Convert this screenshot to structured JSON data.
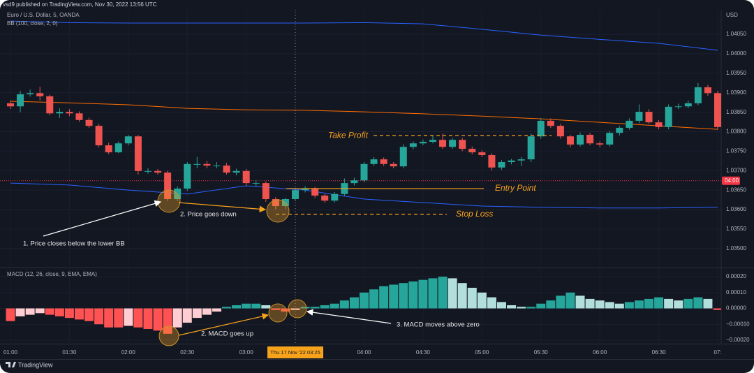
{
  "header": "vsd9 published on TradingView.com, Nov 30, 2022 13:56 UTC",
  "brand": "TradingView",
  "chart_data": [
    {
      "type": "candlestick",
      "symbol": "Euro / U.S. Dollar, 5, OANDA",
      "indicator": "BB (100, close, 2, 0)",
      "currency": "USD",
      "up_color": "#26a69a",
      "down_color": "#ef5350",
      "grid": true,
      "x": [
        "01:00",
        "01:05",
        "01:10",
        "01:15",
        "01:20",
        "01:25",
        "01:30",
        "01:35",
        "01:40",
        "01:45",
        "01:50",
        "01:55",
        "02:00",
        "02:05",
        "02:10",
        "02:15",
        "02:20",
        "02:25",
        "02:30",
        "02:35",
        "02:40",
        "02:45",
        "02:50",
        "02:55",
        "03:00",
        "03:05",
        "03:10",
        "03:15",
        "03:20",
        "03:25",
        "03:30",
        "03:35",
        "03:40",
        "03:45",
        "03:50",
        "03:55",
        "04:00",
        "04:05",
        "04:10",
        "04:15",
        "04:20",
        "04:25",
        "04:30",
        "04:35",
        "04:40",
        "04:45",
        "04:50",
        "04:55",
        "05:00",
        "05:05",
        "05:10",
        "05:15",
        "05:20",
        "05:25",
        "05:30",
        "05:35",
        "05:40",
        "05:45",
        "05:50",
        "05:55",
        "06:00",
        "06:05",
        "06:10",
        "06:15",
        "06:20",
        "06:25",
        "06:30",
        "06:35",
        "06:40",
        "06:45",
        "06:50",
        "06:55",
        "07:00"
      ],
      "ohlc": [
        [
          1.03873,
          1.0388,
          1.03858,
          1.03865
        ],
        [
          1.03865,
          1.03905,
          1.0385,
          1.03896
        ],
        [
          1.03896,
          1.03908,
          1.0389,
          1.03899
        ],
        [
          1.03899,
          1.03915,
          1.0388,
          1.03891
        ],
        [
          1.03891,
          1.03895,
          1.03842,
          1.03847
        ],
        [
          1.03847,
          1.0386,
          1.03835,
          1.03851
        ],
        [
          1.03851,
          1.03858,
          1.0384,
          1.03847
        ],
        [
          1.03847,
          1.03852,
          1.03825,
          1.0383
        ],
        [
          1.0383,
          1.03836,
          1.0381,
          1.03815
        ],
        [
          1.03815,
          1.0382,
          1.0376,
          1.03765
        ],
        [
          1.03765,
          1.03772,
          1.03742,
          1.03747
        ],
        [
          1.03747,
          1.03775,
          1.03745,
          1.0377
        ],
        [
          1.0377,
          1.03792,
          1.03765,
          1.03788
        ],
        [
          1.03788,
          1.03792,
          1.0369,
          1.03699
        ],
        [
          1.03699,
          1.03706,
          1.03692,
          1.03699
        ],
        [
          1.03699,
          1.03704,
          1.0369,
          1.03695
        ],
        [
          1.03695,
          1.037,
          1.03622,
          1.03627
        ],
        [
          1.03627,
          1.0366,
          1.03622,
          1.03654
        ],
        [
          1.03654,
          1.03722,
          1.03648,
          1.03717
        ],
        [
          1.03717,
          1.03735,
          1.03706,
          1.03717
        ],
        [
          1.03717,
          1.03725,
          1.03706,
          1.03713
        ],
        [
          1.03713,
          1.03722,
          1.03706,
          1.03713
        ],
        [
          1.03713,
          1.0372,
          1.0369,
          1.03695
        ],
        [
          1.03695,
          1.03705,
          1.03688,
          1.03699
        ],
        [
          1.03699,
          1.03704,
          1.03662,
          1.03668
        ],
        [
          1.03668,
          1.03676,
          1.0366,
          1.03668
        ],
        [
          1.03668,
          1.03672,
          1.0362,
          1.03627
        ],
        [
          1.03627,
          1.03632,
          1.036,
          1.03609
        ],
        [
          1.03609,
          1.0363,
          1.03602,
          1.03627
        ],
        [
          1.03627,
          1.03656,
          1.03622,
          1.0365
        ],
        [
          1.0365,
          1.0366,
          1.03644,
          1.03654
        ],
        [
          1.03654,
          1.03658,
          1.0363,
          1.03636
        ],
        [
          1.03636,
          1.0364,
          1.03618,
          1.03623
        ],
        [
          1.03623,
          1.03645,
          1.03618,
          1.0364
        ],
        [
          1.0364,
          1.0368,
          1.03635,
          1.03668
        ],
        [
          1.03668,
          1.03682,
          1.03662,
          1.03675
        ],
        [
          1.03675,
          1.03722,
          1.0367,
          1.03717
        ],
        [
          1.03717,
          1.03735,
          1.03712,
          1.03729
        ],
        [
          1.03729,
          1.03734,
          1.03712,
          1.03717
        ],
        [
          1.03717,
          1.03722,
          1.03706,
          1.03711
        ],
        [
          1.03711,
          1.03768,
          1.03706,
          1.03761
        ],
        [
          1.03761,
          1.03775,
          1.03755,
          1.0377
        ],
        [
          1.0377,
          1.0378,
          1.03765,
          1.03774
        ],
        [
          1.03774,
          1.0379,
          1.0377,
          1.03779
        ],
        [
          1.03779,
          1.03795,
          1.03756,
          1.03761
        ],
        [
          1.03761,
          1.03784,
          1.03756,
          1.03779
        ],
        [
          1.03779,
          1.03784,
          1.0375,
          1.03756
        ],
        [
          1.03756,
          1.03762,
          1.03742,
          1.03747
        ],
        [
          1.03747,
          1.03752,
          1.03735,
          1.0374
        ],
        [
          1.0374,
          1.03745,
          1.037,
          1.03708
        ],
        [
          1.03708,
          1.03727,
          1.03702,
          1.03722
        ],
        [
          1.03722,
          1.0373,
          1.03716,
          1.03726
        ],
        [
          1.03726,
          1.03735,
          1.03712,
          1.03729
        ],
        [
          1.03729,
          1.03795,
          1.03722,
          1.03788
        ],
        [
          1.03788,
          1.03835,
          1.03782,
          1.03828
        ],
        [
          1.03828,
          1.03834,
          1.0381,
          1.03815
        ],
        [
          1.03815,
          1.0382,
          1.03782,
          1.03788
        ],
        [
          1.03788,
          1.03792,
          1.0376,
          1.03767
        ],
        [
          1.03767,
          1.03798,
          1.03762,
          1.03792
        ],
        [
          1.03792,
          1.03797,
          1.03765,
          1.0377
        ],
        [
          1.0377,
          1.03775,
          1.0376,
          1.03767
        ],
        [
          1.03767,
          1.03802,
          1.03762,
          1.03797
        ],
        [
          1.03797,
          1.03815,
          1.0379,
          1.0381
        ],
        [
          1.0381,
          1.03834,
          1.03805,
          1.03828
        ],
        [
          1.03828,
          1.0387,
          1.03822,
          1.03851
        ],
        [
          1.03851,
          1.03858,
          1.0382,
          1.03824
        ],
        [
          1.03824,
          1.0383,
          1.03806,
          1.03812
        ],
        [
          1.03812,
          1.0387,
          1.03806,
          1.03864
        ],
        [
          1.03864,
          1.03872,
          1.03858,
          1.03865
        ],
        [
          1.03865,
          1.0388,
          1.0386,
          1.03873
        ],
        [
          1.03873,
          1.03925,
          1.03868,
          1.03914
        ],
        [
          1.03914,
          1.0392,
          1.03892,
          1.03899
        ],
        [
          1.03899,
          1.03905,
          1.03805,
          1.03812
        ]
      ],
      "bands_x": [
        "01:00",
        "01:30",
        "02:00",
        "02:30",
        "03:00",
        "03:30",
        "04:00",
        "04:30",
        "05:00",
        "05:30",
        "06:00",
        "06:30",
        "07:00"
      ],
      "bands": [
        {
          "color": "#2962ff",
          "values": [
            1.04084,
            1.0408,
            1.04079,
            1.04079,
            1.04079,
            1.04079,
            1.0408,
            1.04077,
            1.04063,
            1.04048,
            1.04037,
            1.04027,
            1.04009
          ]
        },
        {
          "color": "#ff6d00",
          "values": [
            1.03878,
            1.03874,
            1.03869,
            1.0386,
            1.03856,
            1.03855,
            1.03851,
            1.03846,
            1.0384,
            1.03833,
            1.03824,
            1.03815,
            1.03806
          ]
        },
        {
          "color": "#2962ff",
          "values": [
            1.03668,
            1.03663,
            1.0365,
            1.0364,
            1.03661,
            1.0365,
            1.03627,
            1.03618,
            1.03609,
            1.03606,
            1.03604,
            1.03604,
            1.03606
          ]
        }
      ],
      "ylim": [
        1.03453,
        1.04113
      ],
      "yticks": [
        {
          "value": 1.0405,
          "label": "1.04050"
        },
        {
          "value": 1.04,
          "label": "1.04000"
        },
        {
          "value": 1.0395,
          "label": "1.03950"
        },
        {
          "value": 1.039,
          "label": "1.03900"
        },
        {
          "value": 1.0385,
          "label": "1.03850"
        },
        {
          "value": 1.038,
          "label": "1.03800"
        },
        {
          "value": 1.0375,
          "label": "1.03750"
        },
        {
          "value": 1.037,
          "label": "1.03700"
        },
        {
          "value": 1.0365,
          "label": "1.03650"
        },
        {
          "value": 1.036,
          "label": "1.03600"
        },
        {
          "value": 1.0355,
          "label": "1.03550"
        },
        {
          "value": 1.035,
          "label": "1.03500"
        }
      ],
      "countdown": {
        "value": 1.03674,
        "label": "04:00",
        "color": "#f23645"
      },
      "levels": [
        {
          "label": "Take Profit",
          "value": 1.0379,
          "color": "#f7a21b",
          "style": "dashed"
        },
        {
          "label": "Entry Point",
          "value": 1.03654,
          "color": "#f7a21b",
          "style": "solid"
        },
        {
          "label": "Stop Loss",
          "value": 1.03588,
          "color": "#f7a21b",
          "style": "dashed"
        }
      ],
      "annotations": [
        "1. Price closes below the lower BB",
        "2. Price goes down"
      ]
    },
    {
      "type": "histogram",
      "indicator": "MACD (12, 26, close, 9, EMA, EMA)",
      "colors": {
        "up_rising": "#26a69a",
        "up_falling": "#b2dfdb",
        "down_falling": "#ff5252",
        "down_rising": "#ffcdd2"
      },
      "x": [
        "01:00",
        "01:05",
        "01:10",
        "01:15",
        "01:20",
        "01:25",
        "01:30",
        "01:35",
        "01:40",
        "01:45",
        "01:50",
        "01:55",
        "02:00",
        "02:05",
        "02:10",
        "02:15",
        "02:20",
        "02:25",
        "02:30",
        "02:35",
        "02:40",
        "02:45",
        "02:50",
        "02:55",
        "03:00",
        "03:05",
        "03:10",
        "03:15",
        "03:20",
        "03:25",
        "03:30",
        "03:35",
        "03:40",
        "03:45",
        "03:50",
        "03:55",
        "04:00",
        "04:05",
        "04:10",
        "04:15",
        "04:20",
        "04:25",
        "04:30",
        "04:35",
        "04:40",
        "04:45",
        "04:50",
        "04:55",
        "05:00",
        "05:05",
        "05:10",
        "05:15",
        "05:20",
        "05:25",
        "05:30",
        "05:35",
        "05:40",
        "05:45",
        "05:50",
        "05:55",
        "06:00",
        "06:05",
        "06:10",
        "06:15",
        "06:20",
        "06:25",
        "06:30",
        "06:35",
        "06:40",
        "06:45",
        "06:50",
        "06:55",
        "07:00"
      ],
      "values": [
        -8e-05,
        -5e-05,
        -4e-05,
        -3e-05,
        -4e-05,
        -5e-05,
        -6e-05,
        -7e-05,
        -8e-05,
        -0.0001,
        -0.00012,
        -0.00012,
        -0.00011,
        -0.00012,
        -0.00013,
        -0.00014,
        -0.00016,
        -0.00012,
        -9e-05,
        -6e-05,
        -4e-05,
        -2e-05,
        1e-05,
        2e-05,
        3e-05,
        3e-05,
        2e-05,
        -1e-05,
        -2e-05,
        -1e-05,
        1e-05,
        1e-05,
        2e-05,
        3e-05,
        5e-05,
        7e-05,
        0.0001,
        0.00012,
        0.00014,
        0.00015,
        0.00016,
        0.00017,
        0.00018,
        0.00019,
        0.0002,
        0.00019,
        0.00016,
        0.00013,
        0.0001,
        7e-05,
        4e-05,
        2e-05,
        1e-05,
        1e-05,
        3e-05,
        5e-05,
        8e-05,
        0.0001,
        8e-05,
        6e-05,
        5e-05,
        4e-05,
        3e-05,
        4e-05,
        5e-05,
        6e-05,
        7e-05,
        6e-05,
        5e-05,
        6e-05,
        7e-05,
        6e-05,
        -1e-05
      ],
      "ylim": [
        -0.000218,
        0.000249
      ],
      "yticks": [
        {
          "value": 0.0002,
          "label": "0.00020"
        },
        {
          "value": 0.0001,
          "label": "0.00010"
        },
        {
          "value": 0,
          "label": "0.00000"
        },
        {
          "value": -0.0001,
          "label": "−0.00010"
        },
        {
          "value": -0.0002,
          "label": "−0.00020"
        }
      ],
      "xticks": [
        "01:00",
        "01:30",
        "02:00",
        "02:30",
        "03:00",
        "04:00",
        "04:30",
        "05:00",
        "05:30",
        "06:00",
        "06:30",
        "07:00"
      ],
      "xtick_labels": [
        "01:00",
        "01:30",
        "02:00",
        "02:30",
        "03:00",
        "04:00",
        "04:30",
        "05:00",
        "05:30",
        "06:00",
        "06:30",
        "07:"
      ],
      "crosshair": {
        "x": "03:25",
        "label": "Thu 17 Nov '22   03:25"
      },
      "annotations": [
        "2. MACD goes up",
        "3. MACD moves above zero"
      ]
    }
  ]
}
